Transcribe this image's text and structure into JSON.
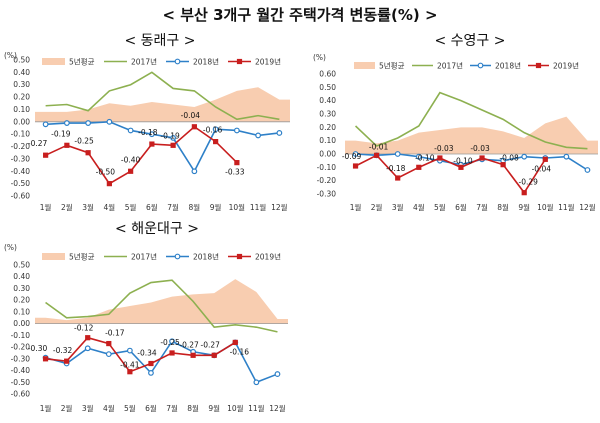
{
  "main_title": "< 부산 3개구 월간 주택가격 변동률(%) >",
  "chart_data": [
    {
      "type": "line",
      "title": "< 동래구 >",
      "unit": "(%)",
      "categories": [
        "1월",
        "2월",
        "3월",
        "4월",
        "5월",
        "6월",
        "7월",
        "8월",
        "9월",
        "10월",
        "11월",
        "12월"
      ],
      "ylim": [
        -0.6,
        0.5
      ],
      "yticks": [
        "0.50",
        "0.40",
        "0.30",
        "0.20",
        "0.10",
        "0.00",
        "-0.10",
        "-0.20",
        "-0.30",
        "-0.40",
        "-0.50",
        "-0.60"
      ],
      "legend": [
        "5년평균",
        "2017년",
        "2018년",
        "2019년"
      ],
      "legend_position": "top",
      "series": [
        {
          "name": "5년평균",
          "kind": "area",
          "color": "#f8cdb0",
          "values": [
            0.08,
            0.08,
            0.1,
            0.15,
            0.13,
            0.16,
            0.14,
            0.12,
            0.18,
            0.25,
            0.28,
            0.18
          ]
        },
        {
          "name": "2017년",
          "kind": "line",
          "color": "#8db050",
          "values": [
            0.13,
            0.14,
            0.09,
            0.25,
            0.3,
            0.4,
            0.27,
            0.25,
            0.12,
            0.02,
            0.05,
            0.02
          ]
        },
        {
          "name": "2018년",
          "kind": "line",
          "color": "#2e80c8",
          "values": [
            -0.02,
            -0.01,
            -0.01,
            0.0,
            -0.07,
            -0.1,
            -0.13,
            -0.4,
            -0.06,
            -0.07,
            -0.11,
            -0.09
          ]
        },
        {
          "name": "2019년",
          "kind": "line",
          "color": "#c81e1e",
          "values": [
            -0.27,
            -0.19,
            -0.25,
            -0.5,
            -0.4,
            -0.18,
            -0.19,
            -0.04,
            -0.16,
            -0.33,
            null,
            null
          ],
          "labels": [
            "-0.27",
            "-0.19",
            "-0.25",
            "-0.50",
            "-0.40",
            "-0.18",
            "-0.19",
            "-0.04",
            "-0.16",
            "-0.33",
            "",
            ""
          ]
        }
      ]
    },
    {
      "type": "line",
      "title": "< 수영구 >",
      "unit": "(%)",
      "categories": [
        "1월",
        "2월",
        "3월",
        "4월",
        "5월",
        "6월",
        "7월",
        "8월",
        "9월",
        "10월",
        "11월",
        "12월"
      ],
      "ylim": [
        -0.3,
        0.6
      ],
      "yticks": [
        "0.60",
        "0.50",
        "0.40",
        "0.30",
        "0.20",
        "0.10",
        "0.00",
        "-0.10",
        "-0.20",
        "-0.30"
      ],
      "legend": [
        "5년평균",
        "2017년",
        "2018년",
        "2019년"
      ],
      "legend_position": "top",
      "series": [
        {
          "name": "5년평균",
          "kind": "area",
          "color": "#f8cdb0",
          "values": [
            0.1,
            0.08,
            0.1,
            0.16,
            0.18,
            0.2,
            0.2,
            0.17,
            0.12,
            0.23,
            0.28,
            0.1
          ]
        },
        {
          "name": "2017년",
          "kind": "line",
          "color": "#8db050",
          "values": [
            0.21,
            0.06,
            0.12,
            0.21,
            0.46,
            0.4,
            0.33,
            0.26,
            0.16,
            0.09,
            0.05,
            0.04
          ]
        },
        {
          "name": "2018년",
          "kind": "line",
          "color": "#2e80c8",
          "values": [
            0.0,
            -0.01,
            0.0,
            -0.02,
            -0.05,
            -0.08,
            -0.04,
            -0.05,
            -0.02,
            -0.03,
            -0.02,
            -0.12
          ]
        },
        {
          "name": "2019년",
          "kind": "line",
          "color": "#c81e1e",
          "values": [
            -0.09,
            -0.01,
            -0.18,
            -0.1,
            -0.03,
            -0.1,
            -0.03,
            -0.08,
            -0.29,
            -0.04,
            null,
            null
          ],
          "labels": [
            "-0.09",
            "-0.01",
            "-0.18",
            "-0.10",
            "-0.03",
            "-0.10",
            "-0.03",
            "-0.08",
            "-0.29",
            "-0.04",
            "",
            ""
          ]
        }
      ]
    },
    {
      "type": "line",
      "title": "< 해운대구 >",
      "unit": "(%)",
      "categories": [
        "1월",
        "2월",
        "3월",
        "4월",
        "5월",
        "6월",
        "7월",
        "8월",
        "9월",
        "10월",
        "11월",
        "12월"
      ],
      "ylim": [
        -0.6,
        0.5
      ],
      "yticks": [
        "0.50",
        "0.40",
        "0.30",
        "0.20",
        "0.10",
        "0.00",
        "-0.10",
        "-0.20",
        "-0.30",
        "-0.40",
        "-0.50",
        "-0.60"
      ],
      "legend": [
        "5년평균",
        "2017년",
        "2018년",
        "2019년"
      ],
      "legend_position": "top",
      "series": [
        {
          "name": "5년평균",
          "kind": "area",
          "color": "#f8cdb0",
          "values": [
            0.05,
            0.03,
            0.05,
            0.12,
            0.15,
            0.18,
            0.23,
            0.25,
            0.26,
            0.38,
            0.27,
            0.04
          ]
        },
        {
          "name": "2017년",
          "kind": "line",
          "color": "#8db050",
          "values": [
            0.18,
            0.05,
            0.06,
            0.08,
            0.26,
            0.35,
            0.37,
            0.19,
            -0.03,
            -0.01,
            -0.03,
            -0.07
          ]
        },
        {
          "name": "2018년",
          "kind": "line",
          "color": "#2e80c8",
          "values": [
            -0.29,
            -0.34,
            -0.21,
            -0.26,
            -0.23,
            -0.42,
            -0.15,
            -0.24,
            -0.27,
            -0.16,
            -0.5,
            -0.43
          ]
        },
        {
          "name": "2019년",
          "kind": "line",
          "color": "#c81e1e",
          "values": [
            -0.3,
            -0.32,
            -0.12,
            -0.17,
            -0.41,
            -0.34,
            -0.25,
            -0.27,
            -0.27,
            -0.16,
            null,
            null
          ],
          "labels": [
            "-0.30",
            "-0.32",
            "-0.12",
            "-0.17",
            "-0.41",
            "-0.34",
            "-0.25",
            "-0.27",
            "-0.27",
            "-0.16",
            "",
            ""
          ]
        }
      ]
    }
  ]
}
